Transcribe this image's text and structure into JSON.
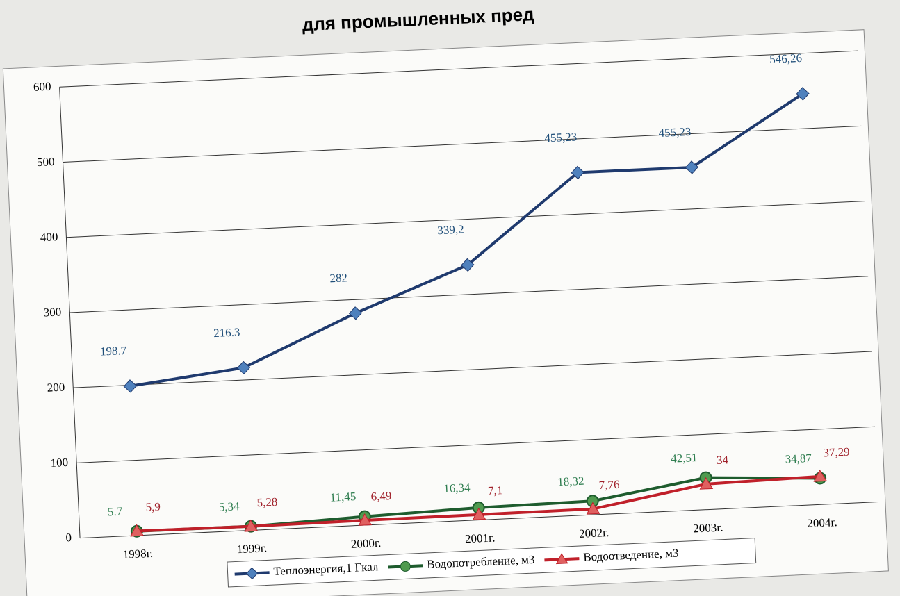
{
  "chart_data": {
    "type": "line",
    "title": "для промышленных пред",
    "categories": [
      "1998г.",
      "1999г.",
      "2000г.",
      "2001г.",
      "2002г.",
      "2003г.",
      "2004г."
    ],
    "series": [
      {
        "name": "Теплоэнергия,1 Гкал",
        "color": "#1f3a6e",
        "marker_color": "#4f81bd",
        "marker": "diamond",
        "label_color": "#1f4e79",
        "values": [
          198.7,
          216.3,
          282,
          339.2,
          455.23,
          455.23,
          546.26
        ],
        "value_labels": [
          "198.7",
          "216.3",
          "282",
          "339,2",
          "455,23",
          "455,23",
          "546,26"
        ]
      },
      {
        "name": "Водопотребление, м3",
        "color": "#1e5c2e",
        "marker_color": "#4f9a4f",
        "marker": "circle",
        "label_color": "#2e7d4f",
        "values": [
          5.7,
          5.34,
          11.45,
          16.34,
          18.32,
          42.51,
          34.87
        ],
        "value_labels": [
          "5.7",
          "5,34",
          "11,45",
          "16,34",
          "18,32",
          "42,51",
          "34,87"
        ]
      },
      {
        "name": "Водоотведение, м3",
        "color": "#c0202a",
        "marker_color": "#e06060",
        "marker": "triangle",
        "label_color": "#a0202a",
        "values": [
          5.9,
          5.28,
          6.49,
          7.1,
          7.76,
          34,
          37.29
        ],
        "value_labels": [
          "5,9",
          "5,28",
          "6,49",
          "7,1",
          "7,76",
          "34",
          "37,29"
        ]
      }
    ],
    "ylim": [
      0,
      600
    ],
    "yticks": [
      0,
      100,
      200,
      300,
      400,
      500,
      600
    ],
    "grid": true,
    "legend": "bottom"
  }
}
